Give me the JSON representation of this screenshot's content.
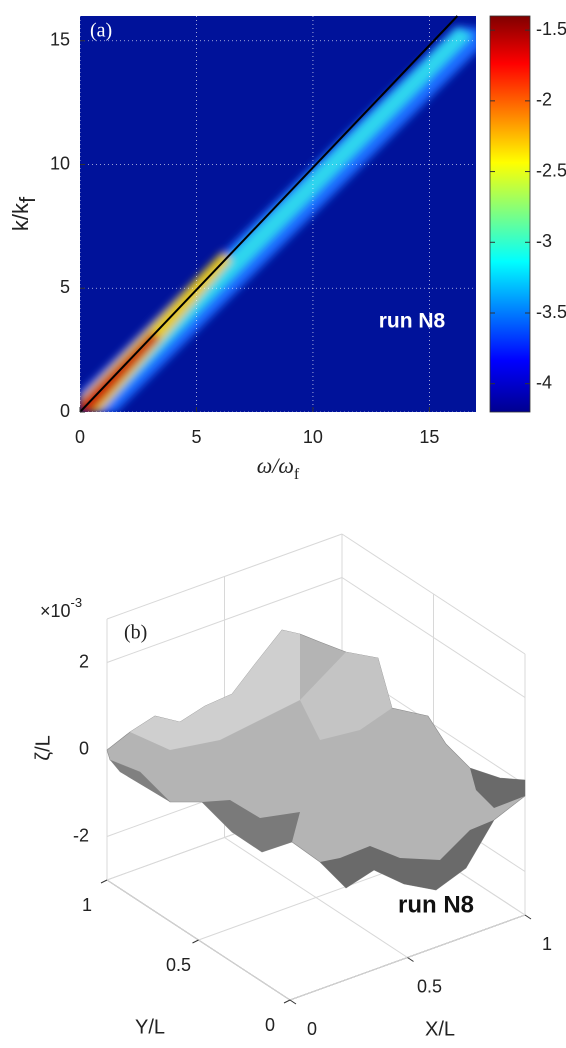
{
  "chart_data": [
    {
      "type": "heatmap",
      "label": "(a)",
      "annotation": "run N8",
      "xlabel": {
        "main": "ω/ω",
        "sub": "f"
      },
      "ylabel": {
        "main": "k/k",
        "sub": "f"
      },
      "xlim": [
        0,
        17
      ],
      "ylim": [
        0,
        16
      ],
      "xticks": [
        0,
        5,
        10,
        15
      ],
      "yticks": [
        0,
        5,
        10,
        15
      ],
      "grid": true,
      "line": {
        "x": [
          0,
          16.2
        ],
        "y": [
          0,
          16
        ],
        "color": "#000000"
      },
      "colorbar": {
        "lim": [
          -4.2,
          -1.4
        ],
        "ticks": [
          -1.5,
          -2,
          -2.5,
          -3,
          -3.5,
          -4
        ]
      }
    },
    {
      "type": "surface3d",
      "label": "(b)",
      "annotation": "run N8",
      "xlabel": "X/L",
      "ylabel": "Y/L",
      "zlabel": "ζ/L",
      "xlim": [
        0,
        1
      ],
      "ylim": [
        0,
        1
      ],
      "zlim": [
        -3,
        3
      ],
      "xticks": [
        0,
        0.5,
        1
      ],
      "yticks": [
        0,
        0.5,
        1
      ],
      "zticks": [
        -2,
        0,
        2
      ],
      "zmultiplier": {
        "base": "×10",
        "exp": "-3"
      },
      "color": "#b4b4b4"
    }
  ]
}
